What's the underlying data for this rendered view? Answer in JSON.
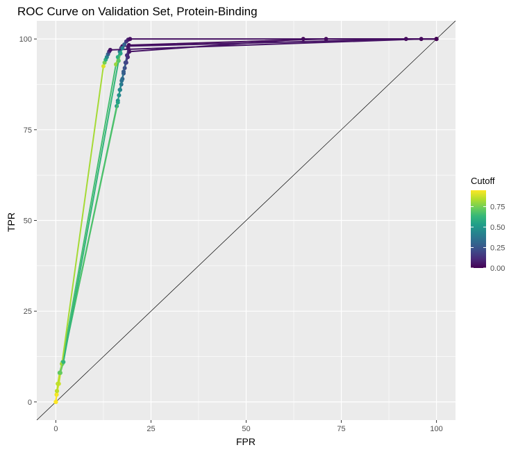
{
  "chart_data": {
    "type": "line",
    "title": "ROC Curve on Validation Set, Protein-Binding",
    "xlabel": "FPR",
    "ylabel": "TPR",
    "xlim": [
      -5,
      105
    ],
    "ylim": [
      -5,
      105
    ],
    "x_ticks": [
      0,
      25,
      50,
      75,
      100
    ],
    "y_ticks": [
      0,
      25,
      50,
      75,
      100
    ],
    "grid": true,
    "reference_line": {
      "from": [
        0,
        0
      ],
      "to": [
        100,
        100
      ],
      "color": "#000000"
    },
    "legend": {
      "title": "Cutoff",
      "position": "right",
      "ticks": [
        0.0,
        0.25,
        0.5,
        0.75
      ],
      "tick_labels": [
        "0.00",
        "0.25",
        "0.50",
        "0.75"
      ],
      "range": [
        0,
        0.95
      ]
    },
    "colors": {
      "panel_background": "#ebebeb",
      "grid": "#ffffff",
      "viridis": [
        "#440154",
        "#482878",
        "#3e4a89",
        "#31688e",
        "#26828e",
        "#1f9e89",
        "#35b779",
        "#6ece58",
        "#b5de2b",
        "#fde725"
      ]
    },
    "series": [
      {
        "points": [
          {
            "x": 0,
            "y": 0,
            "c": 0.95
          },
          {
            "x": 0.2,
            "y": 2,
            "c": 0.92
          },
          {
            "x": 0.5,
            "y": 5,
            "c": 0.85
          },
          {
            "x": 1,
            "y": 8,
            "c": 0.75
          },
          {
            "x": 1.8,
            "y": 11,
            "c": 0.65
          },
          {
            "x": 16,
            "y": 81.5,
            "c": 0.5
          },
          {
            "x": 16.3,
            "y": 83,
            "c": 0.45
          },
          {
            "x": 16.6,
            "y": 84.5,
            "c": 0.42
          },
          {
            "x": 16.9,
            "y": 86,
            "c": 0.38
          },
          {
            "x": 17.2,
            "y": 87.5,
            "c": 0.34
          },
          {
            "x": 17.5,
            "y": 89,
            "c": 0.3
          },
          {
            "x": 17.8,
            "y": 90.5,
            "c": 0.25
          },
          {
            "x": 18.1,
            "y": 92,
            "c": 0.2
          },
          {
            "x": 18.5,
            "y": 93.5,
            "c": 0.15
          },
          {
            "x": 18.9,
            "y": 95,
            "c": 0.1
          },
          {
            "x": 19.3,
            "y": 96.5,
            "c": 0.05
          },
          {
            "x": 65,
            "y": 100,
            "c": 0.01
          },
          {
            "x": 100,
            "y": 100,
            "c": 0.0
          }
        ]
      },
      {
        "points": [
          {
            "x": 0,
            "y": 0,
            "c": 0.95
          },
          {
            "x": 0.3,
            "y": 3,
            "c": 0.88
          },
          {
            "x": 1,
            "y": 8,
            "c": 0.7
          },
          {
            "x": 1.7,
            "y": 10.5,
            "c": 0.68
          },
          {
            "x": 16.3,
            "y": 82.5,
            "c": 0.55
          },
          {
            "x": 16.8,
            "y": 86,
            "c": 0.45
          },
          {
            "x": 17.3,
            "y": 88.5,
            "c": 0.36
          },
          {
            "x": 17.8,
            "y": 91,
            "c": 0.28
          },
          {
            "x": 18.3,
            "y": 93.5,
            "c": 0.2
          },
          {
            "x": 18.7,
            "y": 95.5,
            "c": 0.12
          },
          {
            "x": 19,
            "y": 97.5,
            "c": 0.06
          },
          {
            "x": 19.2,
            "y": 98.3,
            "c": 0.03
          },
          {
            "x": 71,
            "y": 100,
            "c": 0.01
          },
          {
            "x": 100,
            "y": 100,
            "c": 0.0
          }
        ]
      },
      {
        "points": [
          {
            "x": 0,
            "y": 0,
            "c": 0.95
          },
          {
            "x": 0.3,
            "y": 3,
            "c": 0.88
          },
          {
            "x": 1,
            "y": 8,
            "c": 0.7
          },
          {
            "x": 1.6,
            "y": 10.5,
            "c": 0.66
          },
          {
            "x": 15.8,
            "y": 93,
            "c": 0.8
          },
          {
            "x": 16.3,
            "y": 95,
            "c": 0.6
          },
          {
            "x": 16.8,
            "y": 96.5,
            "c": 0.35
          },
          {
            "x": 17.2,
            "y": 97.5,
            "c": 0.15
          },
          {
            "x": 17.5,
            "y": 98,
            "c": 0.05
          },
          {
            "x": 92,
            "y": 100,
            "c": 0.01
          },
          {
            "x": 100,
            "y": 100,
            "c": 0.0
          }
        ]
      },
      {
        "points": [
          {
            "x": 0,
            "y": 0,
            "c": 0.95
          },
          {
            "x": 0.2,
            "y": 2,
            "c": 0.93
          },
          {
            "x": 0.8,
            "y": 5,
            "c": 0.88
          },
          {
            "x": 1.6,
            "y": 10.5,
            "c": 0.82
          },
          {
            "x": 12.5,
            "y": 92.5,
            "c": 0.9
          },
          {
            "x": 12.8,
            "y": 93.5,
            "c": 0.75
          },
          {
            "x": 13.1,
            "y": 94.3,
            "c": 0.6
          },
          {
            "x": 13.4,
            "y": 95,
            "c": 0.45
          },
          {
            "x": 13.7,
            "y": 95.8,
            "c": 0.3
          },
          {
            "x": 14,
            "y": 96.5,
            "c": 0.15
          },
          {
            "x": 14.3,
            "y": 97,
            "c": 0.05
          },
          {
            "x": 96,
            "y": 100,
            "c": 0.01
          },
          {
            "x": 100,
            "y": 100,
            "c": 0.0
          }
        ]
      },
      {
        "points": [
          {
            "x": 0,
            "y": 0,
            "c": 0.95
          },
          {
            "x": 0.3,
            "y": 3,
            "c": 0.85
          },
          {
            "x": 1.2,
            "y": 8,
            "c": 0.72
          },
          {
            "x": 2,
            "y": 11,
            "c": 0.62
          },
          {
            "x": 16.5,
            "y": 94,
            "c": 0.7
          },
          {
            "x": 17,
            "y": 96,
            "c": 0.55
          },
          {
            "x": 17.5,
            "y": 97.5,
            "c": 0.4
          },
          {
            "x": 18,
            "y": 98.5,
            "c": 0.3
          },
          {
            "x": 18.5,
            "y": 99.3,
            "c": 0.15
          },
          {
            "x": 19,
            "y": 99.8,
            "c": 0.08
          },
          {
            "x": 19.5,
            "y": 100,
            "c": 0.04
          },
          {
            "x": 100,
            "y": 100,
            "c": 0.0
          }
        ]
      }
    ]
  }
}
